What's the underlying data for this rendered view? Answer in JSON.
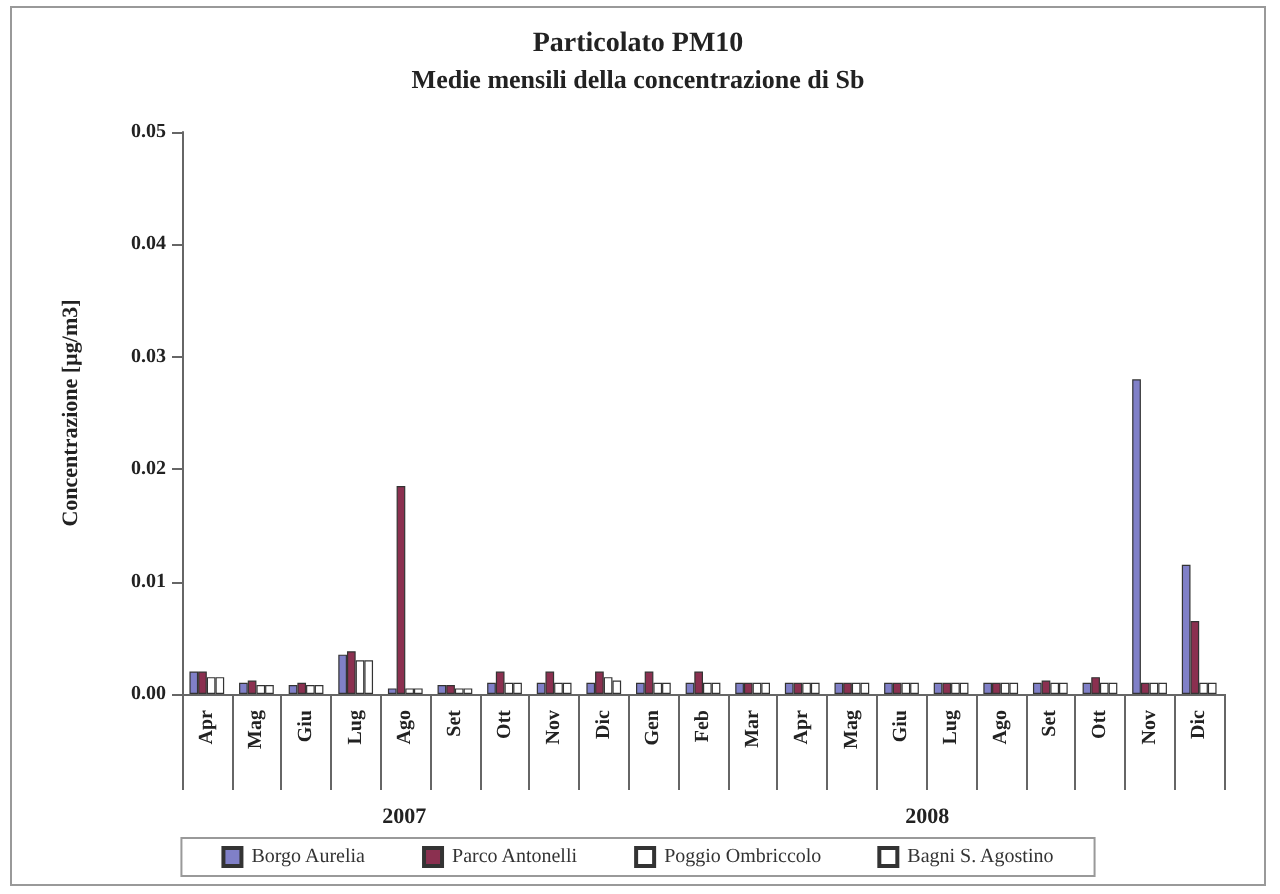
{
  "chart_data": {
    "type": "bar",
    "title": "Particolato PM10",
    "subtitle": "Medie mensili della concentrazione di Sb",
    "ylabel": "Concentrazione [µg/m3]",
    "categories": [
      "Apr",
      "Mag",
      "Giu",
      "Lug",
      "Ago",
      "Set",
      "Ott",
      "Nov",
      "Dic",
      "Gen",
      "Feb",
      "Mar",
      "Apr",
      "Mag",
      "Giu",
      "Lug",
      "Ago",
      "Set",
      "Ott",
      "Nov",
      "Dic"
    ],
    "series": [
      {
        "name": "Borgo Aurelia",
        "color": "#8080c8",
        "values": [
          0.002,
          0.001,
          0.0008,
          0.0035,
          0.0005,
          0.0008,
          0.001,
          0.001,
          0.001,
          0.001,
          0.001,
          0.001,
          0.001,
          0.001,
          0.001,
          0.001,
          0.001,
          0.001,
          0.001,
          0.028,
          0.0115
        ]
      },
      {
        "name": "Parco Antonelli",
        "color": "#8b3050",
        "values": [
          0.002,
          0.0012,
          0.001,
          0.0038,
          0.0185,
          0.0008,
          0.002,
          0.002,
          0.002,
          0.002,
          0.002,
          0.001,
          0.001,
          0.001,
          0.001,
          0.001,
          0.001,
          0.0012,
          0.0015,
          0.001,
          0.0065
        ]
      },
      {
        "name": "Poggio Ombriccolo",
        "color": "#ffffff",
        "values": [
          0.0015,
          0.0008,
          0.0008,
          0.003,
          0.0005,
          0.0005,
          0.001,
          0.001,
          0.0015,
          0.001,
          0.001,
          0.001,
          0.001,
          0.001,
          0.001,
          0.001,
          0.001,
          0.001,
          0.001,
          0.001,
          0.001
        ]
      },
      {
        "name": "Bagni S. Agostino",
        "color": "#ffffff",
        "values": [
          0.0015,
          0.0008,
          0.0008,
          0.003,
          0.0005,
          0.0005,
          0.001,
          0.001,
          0.0012,
          0.001,
          0.001,
          0.001,
          0.001,
          0.001,
          0.001,
          0.001,
          0.001,
          0.001,
          0.001,
          0.001,
          0.001
        ]
      }
    ],
    "ylim": [
      0,
      0.05
    ],
    "yticks": [
      {
        "value": 0,
        "label": "0.00"
      },
      {
        "value": 0.01,
        "label": "0.01"
      },
      {
        "value": 0.02,
        "label": "0.02"
      },
      {
        "value": 0.03,
        "label": "0.03"
      },
      {
        "value": 0.04,
        "label": "0.04"
      },
      {
        "value": 0.05,
        "label": "0.05"
      }
    ],
    "annotations": [
      "2007",
      "2008"
    ],
    "grid": false,
    "legend": "bottom"
  }
}
